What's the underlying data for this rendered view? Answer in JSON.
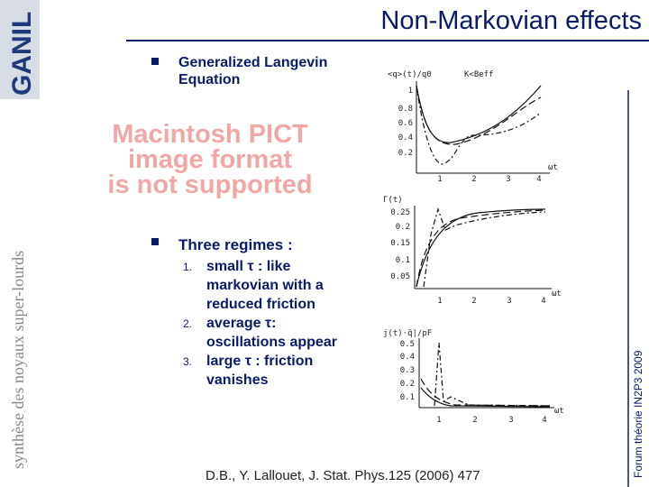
{
  "header": {
    "title": "Non-Markovian effects",
    "logo": "GANIL"
  },
  "sidebar": {
    "left": "synthèse des noyaux super-lourds",
    "right": "Forum théorie IN2P3 2009"
  },
  "bullets": [
    {
      "lines": [
        "Generalized Langevin",
        "Equation"
      ]
    },
    {
      "lines": [
        "Three regimes :"
      ]
    }
  ],
  "placeholder": {
    "lines": [
      "Macintosh PICT",
      "image format",
      "is not supported"
    ]
  },
  "regimes": [
    {
      "number": "1.",
      "lines": [
        "small τ : like",
        "markovian with a",
        "reduced friction"
      ]
    },
    {
      "number": "2.",
      "lines": [
        "average τ:",
        "oscillations appear"
      ]
    },
    {
      "number": "3.",
      "lines": [
        "large τ : friction",
        "vanishes"
      ]
    }
  ],
  "plots": [
    {
      "ylabel": "<q>(t)/q0",
      "note": "K<Beff",
      "xlabel": "ωt",
      "yticks": [
        "1",
        "0.8",
        "0.6",
        "0.4",
        "0.2"
      ],
      "xticks": [
        "1",
        "2",
        "3",
        "4"
      ]
    },
    {
      "ylabel": "Γ(t)",
      "xlabel": "ωt",
      "yticks": [
        "0.25",
        "0.2",
        "0.15",
        "0.1",
        "0.05"
      ],
      "xticks": [
        "1",
        "2",
        "3",
        "4"
      ]
    },
    {
      "ylabel": "j(t)·q̄|/pF",
      "xlabel": "ωt",
      "yticks": [
        "0.5",
        "0.4",
        "0.3",
        "0.2",
        "0.1"
      ],
      "xticks": [
        "1",
        "2",
        "3",
        "4"
      ]
    }
  ],
  "citation": "D.B., Y. Lallouet, J. Stat. Phys.125 (2006) 477"
}
